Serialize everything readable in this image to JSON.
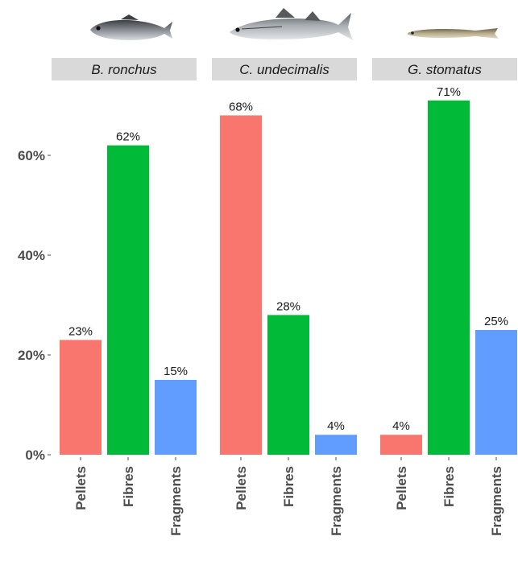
{
  "chart_data": {
    "type": "bar",
    "facets": [
      {
        "name": "B. ronchus",
        "fish_icon": "fish-icon-seabass",
        "categories": [
          "Pellets",
          "Fibres",
          "Fragments"
        ],
        "values": [
          23,
          62,
          15
        ],
        "labels": [
          "23%",
          "62%",
          "15%"
        ]
      },
      {
        "name": "C. undecimalis",
        "fish_icon": "fish-icon-snook",
        "categories": [
          "Pellets",
          "Fibres",
          "Fragments"
        ],
        "values": [
          68,
          28,
          4
        ],
        "labels": [
          "68%",
          "28%",
          "4%"
        ]
      },
      {
        "name": "G. stomatus",
        "fish_icon": "fish-icon-ribbon",
        "categories": [
          "Pellets",
          "Fibres",
          "Fragments"
        ],
        "values": [
          4,
          71,
          25
        ],
        "labels": [
          "4%",
          "71%",
          "25%"
        ]
      }
    ],
    "colors": {
      "Pellets": "#F8766D",
      "Fibres": "#00BA38",
      "Fragments": "#619CFF"
    },
    "y_ticks": [
      0,
      20,
      40,
      60
    ],
    "y_tick_labels": [
      "0%",
      "20%",
      "40%",
      "60%"
    ],
    "ylim": [
      0,
      71
    ],
    "grid": false,
    "legend": "none",
    "title": "",
    "xlabel": "",
    "ylabel": ""
  }
}
